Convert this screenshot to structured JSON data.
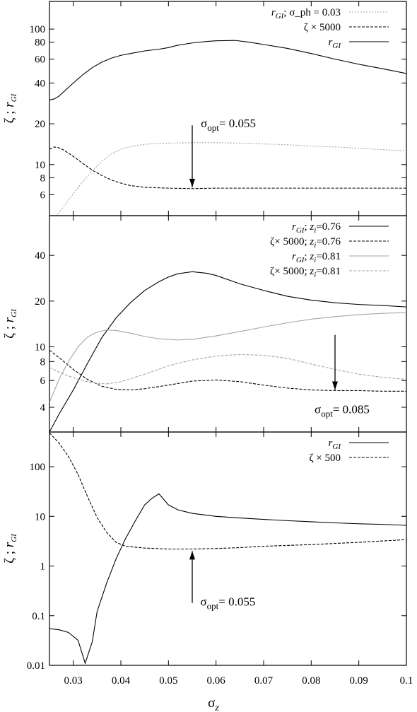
{
  "figure": {
    "xlabel": "σ_z",
    "xticks": [
      0.03,
      0.04,
      0.05,
      0.06,
      0.07,
      0.08,
      0.09,
      0.1
    ],
    "xlim": [
      0.025,
      0.1
    ]
  },
  "chart_data": [
    {
      "type": "line",
      "ylabel": "ζ ; r_GI",
      "yscale": "log",
      "ylim": [
        4.2,
        160
      ],
      "yticks": [
        6,
        8,
        10,
        20,
        40,
        60,
        80,
        100
      ],
      "legend_position": "top-right",
      "series": [
        {
          "name": "r_GI; σ_ph = 0.03",
          "color": "#a6a6a6",
          "dash": "2,2",
          "points": [
            [
              0.0265,
              4.2
            ],
            [
              0.028,
              4.9
            ],
            [
              0.03,
              6.1
            ],
            [
              0.032,
              7.5
            ],
            [
              0.034,
              9.0
            ],
            [
              0.036,
              10.6
            ],
            [
              0.038,
              12.0
            ],
            [
              0.04,
              13.0
            ],
            [
              0.043,
              13.8
            ],
            [
              0.046,
              14.2
            ],
            [
              0.05,
              14.4
            ],
            [
              0.055,
              14.5
            ],
            [
              0.06,
              14.5
            ],
            [
              0.065,
              14.4
            ],
            [
              0.07,
              14.2
            ],
            [
              0.075,
              14.0
            ],
            [
              0.08,
              13.7
            ],
            [
              0.085,
              13.5
            ],
            [
              0.09,
              13.2
            ],
            [
              0.095,
              12.9
            ],
            [
              0.1,
              12.6
            ]
          ]
        },
        {
          "name": "ζ × 5000",
          "color": "#000000",
          "dash": "4,2",
          "points": [
            [
              0.025,
              13.0
            ],
            [
              0.026,
              13.5
            ],
            [
              0.027,
              13.3
            ],
            [
              0.028,
              12.8
            ],
            [
              0.03,
              11.5
            ],
            [
              0.032,
              10.2
            ],
            [
              0.034,
              9.1
            ],
            [
              0.036,
              8.3
            ],
            [
              0.038,
              7.7
            ],
            [
              0.04,
              7.3
            ],
            [
              0.042,
              7.0
            ],
            [
              0.045,
              6.8
            ],
            [
              0.05,
              6.7
            ],
            [
              0.055,
              6.65
            ],
            [
              0.06,
              6.7
            ],
            [
              0.07,
              6.7
            ],
            [
              0.08,
              6.7
            ],
            [
              0.09,
              6.7
            ],
            [
              0.1,
              6.7
            ]
          ]
        },
        {
          "name": "r_GI",
          "color": "#000000",
          "dash": "",
          "points": [
            [
              0.025,
              30.0
            ],
            [
              0.026,
              30.5
            ],
            [
              0.027,
              32.0
            ],
            [
              0.028,
              34.5
            ],
            [
              0.03,
              40.0
            ],
            [
              0.032,
              46.0
            ],
            [
              0.034,
              52.0
            ],
            [
              0.036,
              57.0
            ],
            [
              0.038,
              61.0
            ],
            [
              0.04,
              64.0
            ],
            [
              0.042,
              66.0
            ],
            [
              0.045,
              69.0
            ],
            [
              0.048,
              71.0
            ],
            [
              0.05,
              73.0
            ],
            [
              0.052,
              76.0
            ],
            [
              0.055,
              79.0
            ],
            [
              0.058,
              81.0
            ],
            [
              0.06,
              82.0
            ],
            [
              0.064,
              82.5
            ],
            [
              0.067,
              80.0
            ],
            [
              0.07,
              77.0
            ],
            [
              0.075,
              72.0
            ],
            [
              0.08,
              66.0
            ],
            [
              0.085,
              60.0
            ],
            [
              0.09,
              55.0
            ],
            [
              0.095,
              51.0
            ],
            [
              0.1,
              47.0
            ]
          ]
        }
      ],
      "annotation": {
        "label_main": "σ",
        "label_sub": "opt",
        "label_rest": "= 0.055",
        "arrow": "down",
        "x": 0.055,
        "y_from": 19.5,
        "y_to": 6.8,
        "label_x": 0.0568,
        "label_y": 18.8
      }
    },
    {
      "type": "line",
      "ylabel": "ζ ; r_GI",
      "yscale": "log",
      "ylim": [
        2.75,
        73
      ],
      "yticks": [
        4,
        6,
        8,
        10,
        20,
        40
      ],
      "legend_position": "top-right",
      "series": [
        {
          "name": "r_GI; z_i=0.76",
          "color": "#000000",
          "dash": "",
          "points": [
            [
              0.025,
              2.75
            ],
            [
              0.027,
              3.6
            ],
            [
              0.03,
              5.2
            ],
            [
              0.033,
              7.8
            ],
            [
              0.036,
              11.5
            ],
            [
              0.039,
              15.5
            ],
            [
              0.042,
              19.5
            ],
            [
              0.045,
              23.5
            ],
            [
              0.048,
              26.8
            ],
            [
              0.05,
              28.8
            ],
            [
              0.052,
              30.3
            ],
            [
              0.055,
              31.2
            ],
            [
              0.058,
              30.5
            ],
            [
              0.06,
              29.5
            ],
            [
              0.065,
              26.0
            ],
            [
              0.07,
              23.5
            ],
            [
              0.075,
              21.5
            ],
            [
              0.08,
              20.3
            ],
            [
              0.085,
              19.5
            ],
            [
              0.09,
              19.0
            ],
            [
              0.095,
              18.7
            ],
            [
              0.1,
              18.3
            ]
          ]
        },
        {
          "name": "ζ× 5000; z_i=0.76",
          "color": "#000000",
          "dash": "4,2",
          "points": [
            [
              0.025,
              9.5
            ],
            [
              0.027,
              8.5
            ],
            [
              0.03,
              7.1
            ],
            [
              0.033,
              6.1
            ],
            [
              0.036,
              5.5
            ],
            [
              0.039,
              5.25
            ],
            [
              0.042,
              5.2
            ],
            [
              0.045,
              5.3
            ],
            [
              0.05,
              5.6
            ],
            [
              0.055,
              5.95
            ],
            [
              0.06,
              6.05
            ],
            [
              0.065,
              5.9
            ],
            [
              0.07,
              5.6
            ],
            [
              0.075,
              5.35
            ],
            [
              0.08,
              5.2
            ],
            [
              0.085,
              5.15
            ],
            [
              0.09,
              5.15
            ],
            [
              0.095,
              5.1
            ],
            [
              0.1,
              5.1
            ]
          ]
        },
        {
          "name": "r_GI; z_i=0.81",
          "color": "#a6a6a6",
          "dash": "",
          "points": [
            [
              0.025,
              4.3
            ],
            [
              0.027,
              6.1
            ],
            [
              0.029,
              8.0
            ],
            [
              0.031,
              10.0
            ],
            [
              0.033,
              11.6
            ],
            [
              0.035,
              12.5
            ],
            [
              0.037,
              12.9
            ],
            [
              0.039,
              12.8
            ],
            [
              0.042,
              12.3
            ],
            [
              0.045,
              11.7
            ],
            [
              0.048,
              11.3
            ],
            [
              0.052,
              11.1
            ],
            [
              0.055,
              11.2
            ],
            [
              0.06,
              11.8
            ],
            [
              0.065,
              12.6
            ],
            [
              0.07,
              13.5
            ],
            [
              0.075,
              14.4
            ],
            [
              0.08,
              15.2
            ],
            [
              0.085,
              15.8
            ],
            [
              0.09,
              16.3
            ],
            [
              0.095,
              16.6
            ],
            [
              0.1,
              16.8
            ]
          ]
        },
        {
          "name": "ζ× 5000; z_i=0.81",
          "color": "#a6a6a6",
          "dash": "4,2",
          "points": [
            [
              0.025,
              7.3
            ],
            [
              0.028,
              6.6
            ],
            [
              0.031,
              6.1
            ],
            [
              0.034,
              5.8
            ],
            [
              0.037,
              5.7
            ],
            [
              0.04,
              5.9
            ],
            [
              0.045,
              6.6
            ],
            [
              0.05,
              7.5
            ],
            [
              0.055,
              8.2
            ],
            [
              0.06,
              8.7
            ],
            [
              0.065,
              8.9
            ],
            [
              0.07,
              8.8
            ],
            [
              0.075,
              8.4
            ],
            [
              0.08,
              7.7
            ],
            [
              0.085,
              7.1
            ],
            [
              0.09,
              6.6
            ],
            [
              0.095,
              6.3
            ],
            [
              0.1,
              6.1
            ]
          ]
        }
      ],
      "annotation": {
        "label_main": "σ",
        "label_sub": "opt",
        "label_rest": "= 0.085",
        "arrow": "down",
        "x": 0.085,
        "y_from": 12.0,
        "y_to": 5.2,
        "label_x": 0.0807,
        "label_y": 3.65
      }
    },
    {
      "type": "line",
      "ylabel": "ζ ; r_GI",
      "yscale": "log",
      "ylim": [
        0.01,
        500
      ],
      "yticks": [
        0.01,
        0.1,
        1,
        10,
        100
      ],
      "ytick_labels": [
        "0.01",
        "0.1",
        "1",
        "10",
        "100"
      ],
      "legend_position": "top-right",
      "series": [
        {
          "name": "r_GI",
          "color": "#000000",
          "dash": "",
          "points": [
            [
              0.025,
              0.055
            ],
            [
              0.027,
              0.052
            ],
            [
              0.029,
              0.046
            ],
            [
              0.031,
              0.032
            ],
            [
              0.0325,
              0.011
            ],
            [
              0.034,
              0.03
            ],
            [
              0.035,
              0.12
            ],
            [
              0.037,
              0.45
            ],
            [
              0.039,
              1.4
            ],
            [
              0.041,
              3.6
            ],
            [
              0.043,
              8.0
            ],
            [
              0.045,
              17.0
            ],
            [
              0.0465,
              23.0
            ],
            [
              0.048,
              28.5
            ],
            [
              0.049,
              22.0
            ],
            [
              0.05,
              17.0
            ],
            [
              0.052,
              13.5
            ],
            [
              0.055,
              11.5
            ],
            [
              0.06,
              10.0
            ],
            [
              0.065,
              9.3
            ],
            [
              0.07,
              8.7
            ],
            [
              0.075,
              8.2
            ],
            [
              0.08,
              7.8
            ],
            [
              0.085,
              7.4
            ],
            [
              0.09,
              7.1
            ],
            [
              0.095,
              6.9
            ],
            [
              0.1,
              6.6
            ]
          ]
        },
        {
          "name": "ζ × 500",
          "color": "#000000",
          "dash": "4,2",
          "points": [
            [
              0.025,
              480
            ],
            [
              0.027,
              300
            ],
            [
              0.029,
              160
            ],
            [
              0.031,
              70
            ],
            [
              0.033,
              25
            ],
            [
              0.035,
              9.5
            ],
            [
              0.037,
              4.8
            ],
            [
              0.039,
              3.0
            ],
            [
              0.041,
              2.5
            ],
            [
              0.045,
              2.3
            ],
            [
              0.05,
              2.2
            ],
            [
              0.055,
              2.2
            ],
            [
              0.06,
              2.25
            ],
            [
              0.065,
              2.35
            ],
            [
              0.07,
              2.5
            ],
            [
              0.075,
              2.6
            ],
            [
              0.08,
              2.7
            ],
            [
              0.085,
              2.85
            ],
            [
              0.09,
              3.0
            ],
            [
              0.095,
              3.2
            ],
            [
              0.1,
              3.4
            ]
          ]
        }
      ],
      "annotation": {
        "label_main": "σ",
        "label_sub": "opt",
        "label_rest": "= 0.055",
        "arrow": "up",
        "x": 0.055,
        "y_from": 0.18,
        "y_to": 2.0,
        "label_x": 0.0567,
        "label_y": 0.16
      }
    }
  ]
}
